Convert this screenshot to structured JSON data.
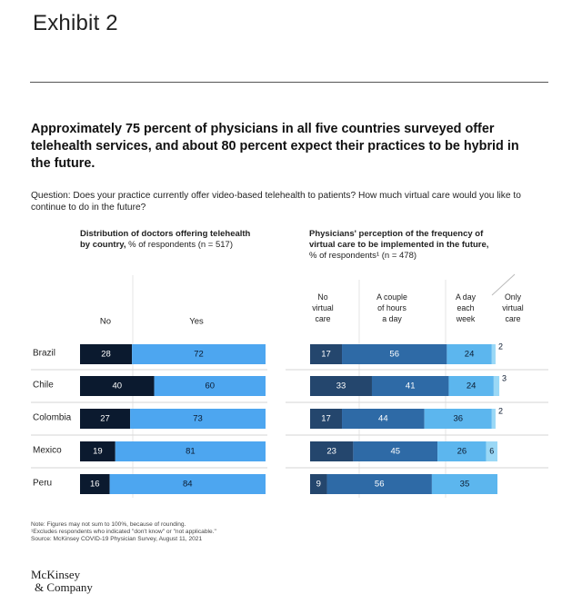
{
  "exhibit_label": "Exhibit 2",
  "headline": "Approximately 75 percent of physicians in all five countries surveyed offer telehealth services, and about 80 percent expect their practices to be hybrid in the future.",
  "question": "Question: Does your practice currently offer video-based telehealth to patients? How much virtual care would you like to continue to do in the future?",
  "left_panel": {
    "title_bold_1": "Distribution of doctors offering telehealth",
    "title_bold_2": "by country,",
    "title_normal_2": " % of respondents (n = 517)"
  },
  "right_panel": {
    "title_bold_1": "Physicians' perception of the frequency of",
    "title_bold_2": "virtual care to be implemented in the future,",
    "title_normal_3": "% of respondents¹ (n = 478)"
  },
  "footnotes": {
    "line1": "Note: Figures may not sum to 100%, because of rounding.",
    "line2": "¹Excludes respondents who indicated \"don't know\" or \"not applicable.\"",
    "line3": "Source: McKinsey COVID-19 Physician Survey, August 11, 2021"
  },
  "logo": {
    "line1": "McKinsey",
    "line2": "& Company"
  },
  "colors": {
    "no": "#0b1a2f",
    "yes": "#4da6f0",
    "no_virtual": "#24466d",
    "hours": "#2e6aa6",
    "week": "#5cb6ee",
    "only_virtual": "#9ad8f6"
  },
  "chart_data": [
    {
      "type": "bar",
      "stacked": true,
      "orientation": "horizontal",
      "title": "Distribution of doctors offering telehealth by country, % of respondents (n = 517)",
      "categories": [
        "Brazil",
        "Chile",
        "Colombia",
        "Mexico",
        "Peru"
      ],
      "series": [
        {
          "name": "No",
          "values": [
            28,
            40,
            27,
            19,
            16
          ]
        },
        {
          "name": "Yes",
          "values": [
            72,
            60,
            73,
            81,
            84
          ]
        }
      ],
      "xlim": [
        0,
        100
      ]
    },
    {
      "type": "bar",
      "stacked": true,
      "orientation": "horizontal",
      "title": "Physicians' perception of the frequency of virtual care to be implemented in the future, % of respondents¹ (n = 478)",
      "categories": [
        "Brazil",
        "Chile",
        "Colombia",
        "Mexico",
        "Peru"
      ],
      "series": [
        {
          "name": "No virtual care",
          "values": [
            17,
            33,
            17,
            23,
            9
          ]
        },
        {
          "name": "A couple of hours a day",
          "values": [
            56,
            41,
            44,
            45,
            56
          ]
        },
        {
          "name": "A day each week",
          "values": [
            24,
            24,
            36,
            26,
            35
          ]
        },
        {
          "name": "Only virtual care",
          "values": [
            2,
            3,
            2,
            6,
            0
          ]
        }
      ],
      "xlim": [
        0,
        100
      ]
    }
  ]
}
